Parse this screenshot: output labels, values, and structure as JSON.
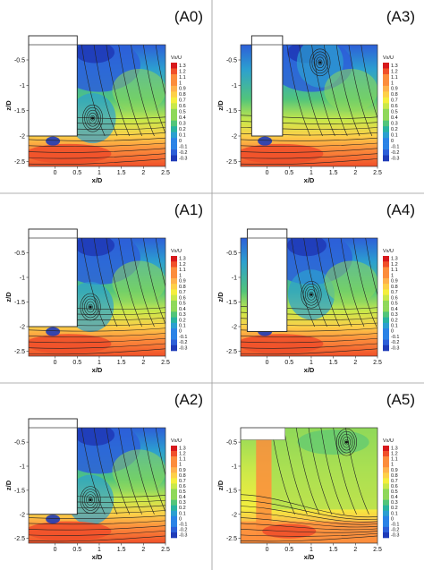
{
  "chart_data": {
    "type": "heatmap",
    "layout": "3x2 grid",
    "xlabel": "x/D",
    "ylabel": "z/D",
    "xlim": [
      -0.6,
      2.5
    ],
    "ylim": [
      -2.6,
      -0.2
    ],
    "x_ticks": [
      "0",
      "0.5",
      "1",
      "1.5",
      "2",
      "2.5"
    ],
    "y_ticks": [
      "-0.5",
      "-1",
      "-1.5",
      "-2",
      "-2.5"
    ],
    "colorbar_title": "Vx/U",
    "colorbar_levels": [
      "1.3",
      "1.2",
      "1.1",
      "1",
      "0.9",
      "0.8",
      "0.7",
      "0.6",
      "0.5",
      "0.4",
      "0.3",
      "0.2",
      "0.1",
      "0",
      "-0.1",
      "-0.2",
      "-0.3"
    ],
    "colormap_colors": [
      "#d7191c",
      "#f0502a",
      "#fc8d3c",
      "#feb24c",
      "#fdd049",
      "#f4ee3e",
      "#c9e84a",
      "#8fd85a",
      "#52c57a",
      "#29b3a0",
      "#2c9fd0",
      "#2b83e6",
      "#2d5fd8",
      "#1f3bb8"
    ],
    "panels": [
      {
        "label": "(A0)",
        "body": {
          "x0": -0.6,
          "x1": 0.5,
          "y0": -0.2,
          "y1": -2.0
        },
        "vortex": {
          "x": 0.85,
          "y": -1.65
        },
        "wake": "recirculating"
      },
      {
        "label": "(A3)",
        "body": {
          "x0": -0.35,
          "x1": 0.35,
          "y0": -0.2,
          "y1": -2.0
        },
        "vortex": {
          "x": 1.2,
          "y": -0.55
        },
        "wake": "recirculating"
      },
      {
        "label": "(A1)",
        "body": {
          "x0": -0.6,
          "x1": 0.5,
          "y0": -0.2,
          "y1": -2.0
        },
        "vortex": {
          "x": 0.8,
          "y": -1.6
        },
        "wake": "recirculating"
      },
      {
        "label": "(A4)",
        "body": {
          "x0": -0.45,
          "x1": 0.45,
          "y0": -0.2,
          "y1": -2.1
        },
        "vortex": {
          "x": 1.0,
          "y": -1.35
        },
        "wake": "recirculating"
      },
      {
        "label": "(A2)",
        "body": {
          "x0": -0.6,
          "x1": 0.5,
          "y0": -0.2,
          "y1": -2.0
        },
        "vortex": {
          "x": 0.8,
          "y": -1.7
        },
        "wake": "recirculating"
      },
      {
        "label": "(A5)",
        "body": {
          "x0": -0.2,
          "x1": 0.0,
          "y0": -0.2,
          "y1": -2.0
        },
        "vortex": {
          "x": 1.8,
          "y": -0.5
        },
        "wake": "porous"
      }
    ]
  }
}
